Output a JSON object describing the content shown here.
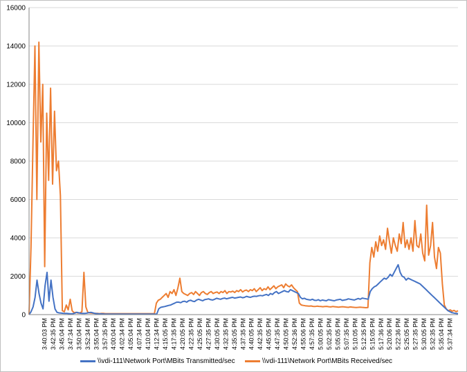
{
  "chart_data": {
    "type": "line",
    "title": "",
    "xlabel": "",
    "ylabel": "",
    "ylim": [
      0,
      16000
    ],
    "y_ticks": [
      0,
      2000,
      4000,
      6000,
      8000,
      10000,
      12000,
      14000,
      16000
    ],
    "grid": true,
    "legend_position": "bottom",
    "x_tick_labels": [
      "3:40:03 PM",
      "3:42:35 PM",
      "3:45:04 PM",
      "3:47:34 PM",
      "3:50:04 PM",
      "3:52:34 PM",
      "3:55:04 PM",
      "3:57:35 PM",
      "4:00:04 PM",
      "4:02:34 PM",
      "4:05:04 PM",
      "4:07:34 PM",
      "4:10:04 PM",
      "4:12:34 PM",
      "4:15:05 PM",
      "4:17:35 PM",
      "4:20:05 PM",
      "4:22:35 PM",
      "4:25:05 PM",
      "4:27:35 PM",
      "4:30:05 PM",
      "4:32:35 PM",
      "4:35:05 PM",
      "4:37:35 PM",
      "4:40:05 PM",
      "4:42:35 PM",
      "4:45:05 PM",
      "4:47:35 PM",
      "4:50:05 PM",
      "4:52:36 PM",
      "4:55:06 PM",
      "4:57:35 PM",
      "5:00:05 PM",
      "5:02:35 PM",
      "5:05:05 PM",
      "5:07:35 PM",
      "5:10:05 PM",
      "5:12:35 PM",
      "5:15:05 PM",
      "5:17:36 PM",
      "5:20:06 PM",
      "5:22:36 PM",
      "5:25:05 PM",
      "5:27:35 PM",
      "5:30:05 PM",
      "5:32:35 PM",
      "5:35:04 PM",
      "5:37:34 PM"
    ],
    "series": [
      {
        "name": "\\\\vdi-111\\Network Port\\MBits Transmitted/sec",
        "color": "#4472c4",
        "values": [
          0,
          150,
          400,
          900,
          1800,
          1100,
          600,
          300,
          1500,
          2200,
          700,
          1800,
          900,
          300,
          120,
          90,
          80,
          70,
          60,
          60,
          50,
          40,
          50,
          80,
          120,
          90,
          70,
          60,
          60,
          80,
          100,
          120,
          90,
          60,
          50,
          40,
          40,
          35,
          30,
          30,
          30,
          30,
          30,
          30,
          30,
          30,
          30,
          30,
          30,
          30,
          30,
          30,
          30,
          30,
          30,
          30,
          30,
          30,
          30,
          30,
          30,
          30,
          30,
          30,
          30,
          300,
          380,
          400,
          420,
          450,
          480,
          500,
          550,
          600,
          650,
          650,
          620,
          680,
          700,
          650,
          720,
          750,
          700,
          680,
          760,
          800,
          760,
          720,
          780,
          800,
          820,
          780,
          760,
          800,
          850,
          820,
          800,
          840,
          860,
          820,
          850,
          880,
          900,
          860,
          880,
          900,
          920,
          880,
          900,
          950,
          920,
          900,
          940,
          960,
          950,
          980,
          1000,
          980,
          1020,
          1050,
          1000,
          1100,
          1050,
          1150,
          1200,
          1100,
          1150,
          1200,
          1250,
          1200,
          1180,
          1300,
          1250,
          1200,
          1150,
          1100,
          900,
          820,
          850,
          800,
          780,
          760,
          800,
          750,
          740,
          780,
          720,
          760,
          740,
          720,
          780,
          760,
          740,
          720,
          760,
          780,
          800,
          740,
          760,
          780,
          820,
          800,
          780,
          760,
          800,
          840,
          800,
          860,
          840,
          820,
          800,
          1200,
          1350,
          1450,
          1500,
          1600,
          1700,
          1800,
          1900,
          1850,
          1950,
          2100,
          2000,
          2200,
          2400,
          2600,
          2200,
          2000,
          1950,
          1800,
          1900,
          1850,
          1800,
          1750,
          1700,
          1650,
          1600,
          1500,
          1400,
          1300,
          1200,
          1100,
          1000,
          900,
          800,
          700,
          600,
          500,
          400,
          300,
          200,
          150,
          100,
          80,
          60,
          50
        ]
      },
      {
        "name": "\\\\vdi-111\\Network Port\\MBits Received/sec",
        "color": "#ed7d31",
        "values": [
          0,
          3500,
          9000,
          14000,
          6000,
          14200,
          9000,
          12000,
          2500,
          10500,
          7000,
          11800,
          6800,
          10600,
          7500,
          8000,
          6200,
          200,
          150,
          500,
          250,
          800,
          200,
          100,
          120,
          80,
          90,
          150,
          2200,
          400,
          120,
          90,
          80,
          70,
          60,
          60,
          50,
          60,
          60,
          50,
          50,
          50,
          50,
          50,
          50,
          50,
          50,
          50,
          50,
          50,
          50,
          50,
          50,
          50,
          50,
          50,
          50,
          50,
          50,
          50,
          50,
          50,
          50,
          50,
          50,
          600,
          750,
          800,
          900,
          1000,
          1100,
          900,
          1200,
          1100,
          1300,
          1000,
          1400,
          1900,
          1200,
          1100,
          1050,
          1000,
          1100,
          1150,
          1050,
          1200,
          1100,
          1000,
          1150,
          1200,
          1100,
          1050,
          1150,
          1200,
          1100,
          1150,
          1180,
          1100,
          1200,
          1150,
          1250,
          1100,
          1200,
          1180,
          1220,
          1150,
          1250,
          1200,
          1300,
          1180,
          1250,
          1280,
          1200,
          1300,
          1250,
          1350,
          1200,
          1300,
          1400,
          1250,
          1350,
          1300,
          1450,
          1300,
          1400,
          1500,
          1350,
          1450,
          1500,
          1550,
          1400,
          1600,
          1500,
          1450,
          1550,
          1400,
          1300,
          1200,
          600,
          500,
          480,
          460,
          450,
          440,
          450,
          430,
          420,
          440,
          430,
          420,
          410,
          420,
          430,
          410,
          400,
          420,
          410,
          400,
          390,
          400,
          410,
          400,
          390,
          380,
          400,
          390,
          380,
          370,
          380,
          390,
          380,
          370,
          360,
          370,
          2700,
          3500,
          3000,
          3800,
          3300,
          4100,
          3600,
          3900,
          3400,
          4500,
          3800,
          3200,
          4000,
          3600,
          3300,
          4200,
          3700,
          4800,
          3500,
          3900,
          3400,
          4000,
          3300,
          4900,
          3600,
          3500,
          4200,
          3200,
          2800,
          5700,
          3100,
          3600,
          4800,
          3000,
          2400,
          3500,
          3200,
          1600,
          500,
          300,
          200,
          250,
          180,
          220,
          150,
          200
        ]
      }
    ]
  }
}
